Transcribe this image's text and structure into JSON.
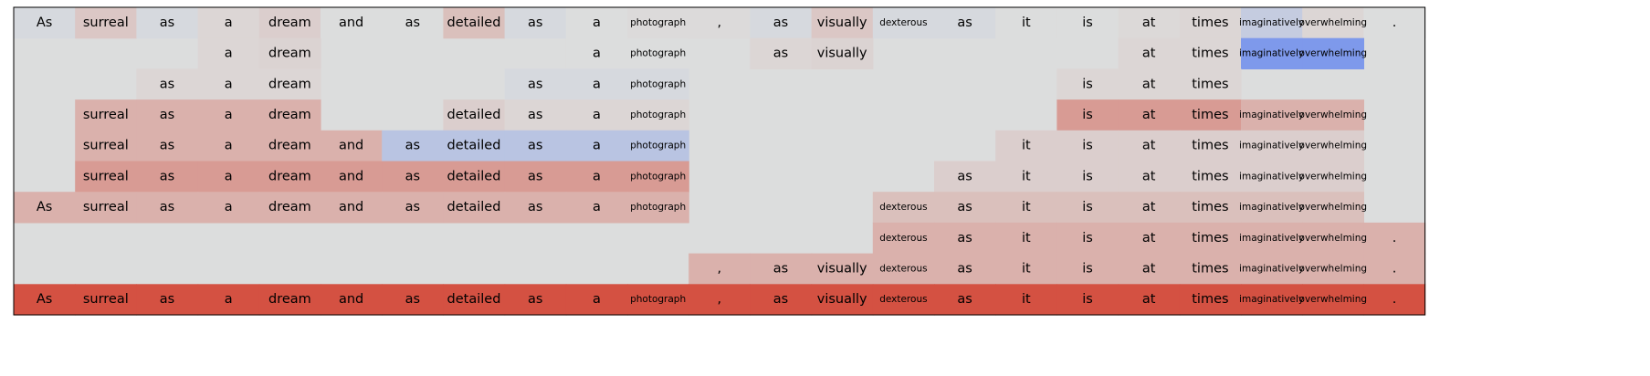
{
  "chart_data": {
    "type": "heatmap",
    "title": "",
    "xlabel": "",
    "ylabel": "",
    "grid": false,
    "legend": "none",
    "tokens": [
      "As",
      "surreal",
      "as",
      "a",
      "dream",
      "and",
      "as",
      "detailed",
      "as",
      "a",
      "photograph",
      ",",
      "as",
      "visually",
      "dexterous",
      "as",
      "it",
      "is",
      "at",
      "times",
      "imaginatively",
      "overwhelming",
      "."
    ],
    "color_scale": {
      "min": -1,
      "max": 1,
      "low_color": "#6788ee",
      "mid_color": "#dcdddd",
      "high_color": "#d44a3a"
    },
    "rows": [
      [
        -0.05,
        0.15,
        -0.05,
        0.05,
        0.1,
        0,
        0,
        0.2,
        -0.05,
        0,
        0.02,
        0.02,
        -0.05,
        0.15,
        -0.05,
        -0.05,
        0,
        0,
        0.03,
        0.05,
        -0.2,
        0.05,
        0
      ],
      [
        null,
        null,
        null,
        0.05,
        0.07,
        null,
        null,
        null,
        null,
        0,
        0,
        null,
        0.05,
        0.07,
        null,
        null,
        null,
        null,
        0.05,
        0.05,
        -0.8,
        -0.8,
        null
      ],
      [
        null,
        null,
        0.05,
        0.05,
        0.05,
        null,
        null,
        null,
        -0.05,
        -0.05,
        -0.05,
        null,
        null,
        null,
        null,
        null,
        null,
        0.05,
        0.05,
        0.05,
        null,
        null,
        null
      ],
      [
        null,
        0.3,
        0.3,
        0.3,
        0.3,
        null,
        null,
        0.1,
        0.05,
        0.05,
        0.05,
        null,
        null,
        null,
        null,
        null,
        null,
        0.45,
        0.45,
        0.45,
        0.3,
        0.3,
        null
      ],
      [
        null,
        0.3,
        0.3,
        0.3,
        0.3,
        0.3,
        -0.3,
        -0.3,
        -0.3,
        -0.3,
        -0.3,
        null,
        null,
        null,
        null,
        null,
        0.1,
        0.1,
        0.1,
        0.1,
        0.1,
        0.1,
        null
      ],
      [
        null,
        0.45,
        0.45,
        0.45,
        0.45,
        0.45,
        0.45,
        0.45,
        0.45,
        0.45,
        0.45,
        null,
        null,
        null,
        null,
        0.1,
        0.1,
        0.1,
        0.1,
        0.1,
        0.1,
        0.1,
        null
      ],
      [
        0.3,
        0.3,
        0.3,
        0.3,
        0.3,
        0.3,
        0.3,
        0.3,
        0.3,
        0.3,
        0.3,
        null,
        null,
        null,
        0.2,
        0.2,
        0.2,
        0.2,
        0.2,
        0.2,
        0.2,
        0.2,
        null
      ],
      [
        null,
        null,
        null,
        null,
        null,
        null,
        null,
        null,
        null,
        null,
        null,
        null,
        null,
        null,
        0.3,
        0.3,
        0.3,
        0.3,
        0.3,
        0.3,
        0.3,
        0.3,
        0.3
      ],
      [
        null,
        null,
        null,
        null,
        null,
        null,
        null,
        null,
        null,
        null,
        null,
        0.3,
        0.3,
        0.3,
        0.3,
        0.3,
        0.3,
        0.3,
        0.3,
        0.3,
        0.3,
        0.3,
        0.3
      ],
      [
        0.95,
        0.95,
        0.95,
        0.95,
        0.95,
        0.95,
        0.95,
        0.95,
        0.95,
        0.95,
        0.95,
        0.95,
        0.95,
        0.95,
        0.95,
        0.95,
        0.95,
        0.95,
        0.95,
        0.95,
        0.95,
        0.95,
        0.95
      ]
    ]
  }
}
